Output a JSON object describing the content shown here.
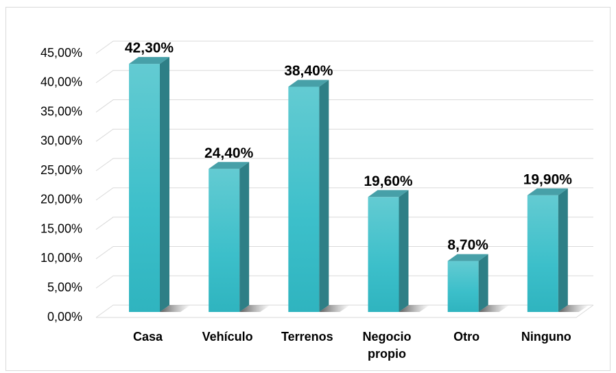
{
  "chart_data": {
    "type": "bar3d",
    "categories": [
      "Casa",
      "Vehículo",
      "Terrenos",
      "Negocio\npropio",
      "Otro",
      "Ninguno"
    ],
    "values": [
      42.3,
      24.4,
      38.4,
      19.6,
      8.7,
      19.9
    ],
    "value_labels": [
      "42,30%",
      "24,40%",
      "38,40%",
      "19,60%",
      "8,70%",
      "19,90%"
    ],
    "color": "#3fbfc9",
    "ylim": [
      0,
      45
    ],
    "yticks": [
      {
        "value": 0,
        "label": "0,00%"
      },
      {
        "value": 5,
        "label": "5,00%"
      },
      {
        "value": 10,
        "label": "10,00%"
      },
      {
        "value": 15,
        "label": "15,00%"
      },
      {
        "value": 20,
        "label": "20,00%"
      },
      {
        "value": 25,
        "label": "25,00%"
      },
      {
        "value": 30,
        "label": "30,00%"
      },
      {
        "value": 35,
        "label": "35,00%"
      },
      {
        "value": 40,
        "label": "40,00%"
      },
      {
        "value": 45,
        "label": "45,00%"
      }
    ],
    "grid": true
  }
}
